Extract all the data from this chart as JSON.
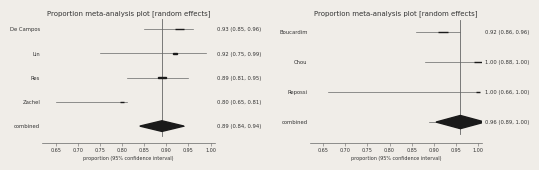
{
  "left_plot": {
    "title": "Proportion meta-analysis plot [random effects]",
    "studies": [
      "De Campos",
      "Lin",
      "Res",
      "Zachel",
      "combined"
    ],
    "estimates": [
      0.93,
      0.92,
      0.89,
      0.8,
      0.89
    ],
    "ci_lower": [
      0.85,
      0.75,
      0.81,
      0.65,
      0.84
    ],
    "ci_upper": [
      0.96,
      0.99,
      0.95,
      0.81,
      0.94
    ],
    "labels": [
      "0.93 (0.85, 0.96)",
      "0.92 (0.75, 0.99)",
      "0.89 (0.81, 0.95)",
      "0.80 (0.65, 0.81)",
      "0.89 (0.84, 0.94)"
    ],
    "is_combined": [
      false,
      false,
      false,
      false,
      true
    ],
    "square_sizes": [
      0.022,
      0.01,
      0.018,
      0.01,
      0.03
    ],
    "xlim": [
      0.62,
      1.01
    ],
    "xticks": [
      0.65,
      0.7,
      0.75,
      0.8,
      0.85,
      0.9,
      0.95,
      1.0
    ],
    "xlabel": "proportion (95% confidence interval)",
    "ref_line": 0.89
  },
  "right_plot": {
    "title": "Proportion meta-analysis plot [random effects]",
    "studies": [
      "Boucardim",
      "Chou",
      "Repossi",
      "combined"
    ],
    "estimates": [
      0.92,
      1.0,
      1.0,
      0.96
    ],
    "ci_lower": [
      0.86,
      0.88,
      0.66,
      0.89
    ],
    "ci_upper": [
      0.96,
      1.0,
      1.0,
      1.0
    ],
    "labels": [
      "0.92 (0.86, 0.96)",
      "1.00 (0.88, 1.00)",
      "1.00 (0.66, 1.00)",
      "0.96 (0.89, 1.00)"
    ],
    "is_combined": [
      false,
      false,
      false,
      true
    ],
    "square_sizes": [
      0.022,
      0.016,
      0.01,
      0.03
    ],
    "xlim": [
      0.62,
      1.01
    ],
    "xticks": [
      0.65,
      0.7,
      0.75,
      0.8,
      0.85,
      0.9,
      0.95,
      1.0
    ],
    "xlabel": "proportion (95% confidence interval)",
    "ref_line": 0.96
  },
  "bg_color": "#f0ede8",
  "plot_bg": "#f0ede8",
  "line_color": "#666666",
  "square_color": "#1a1a1a",
  "diamond_color": "#1a1a1a",
  "text_color": "#333333",
  "title_fontsize": 5.0,
  "label_fontsize": 3.8,
  "study_fontsize": 3.8,
  "tick_fontsize": 3.5
}
